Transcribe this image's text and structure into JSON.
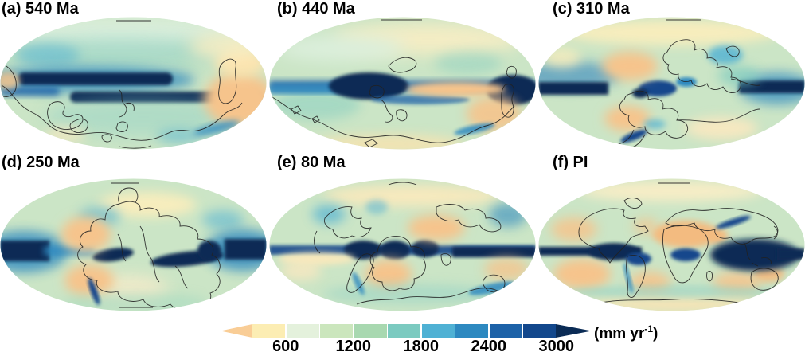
{
  "figure": {
    "panels": [
      {
        "id": "a",
        "label": "(a) 540 Ma"
      },
      {
        "id": "b",
        "label": "(b) 440 Ma"
      },
      {
        "id": "c",
        "label": "(c) 310 Ma"
      },
      {
        "id": "d",
        "label": "(d) 250 Ma"
      },
      {
        "id": "e",
        "label": "(e) 80 Ma"
      },
      {
        "id": "f",
        "label": "(f) PI"
      }
    ],
    "colorbar": {
      "ticks": [
        "600",
        "1200",
        "1800",
        "2400",
        "3000"
      ],
      "unit_prefix": "(mm yr",
      "unit_sup": "-1",
      "unit_suffix": ")",
      "segment_colors": [
        "#fcedb3",
        "#e4f1dc",
        "#cbe6bd",
        "#a8d8b0",
        "#7bcac0",
        "#4fb1d4",
        "#2d89c0",
        "#1d62a8",
        "#12478c"
      ],
      "arrow_left_color": "#f9cd96",
      "arrow_right_color": "#0a2b55"
    },
    "map_palette": {
      "base_green": "#cbe5c6",
      "mint": "#e2efda",
      "teal": "#7bcac0",
      "light_blue": "#4fb1d4",
      "mid_blue": "#2d89c0",
      "deep_blue": "#12478c",
      "navy": "#0a2b55",
      "orange": "#f6c48c",
      "pale_yellow": "#fcedb3",
      "coastline": "#222222"
    }
  }
}
